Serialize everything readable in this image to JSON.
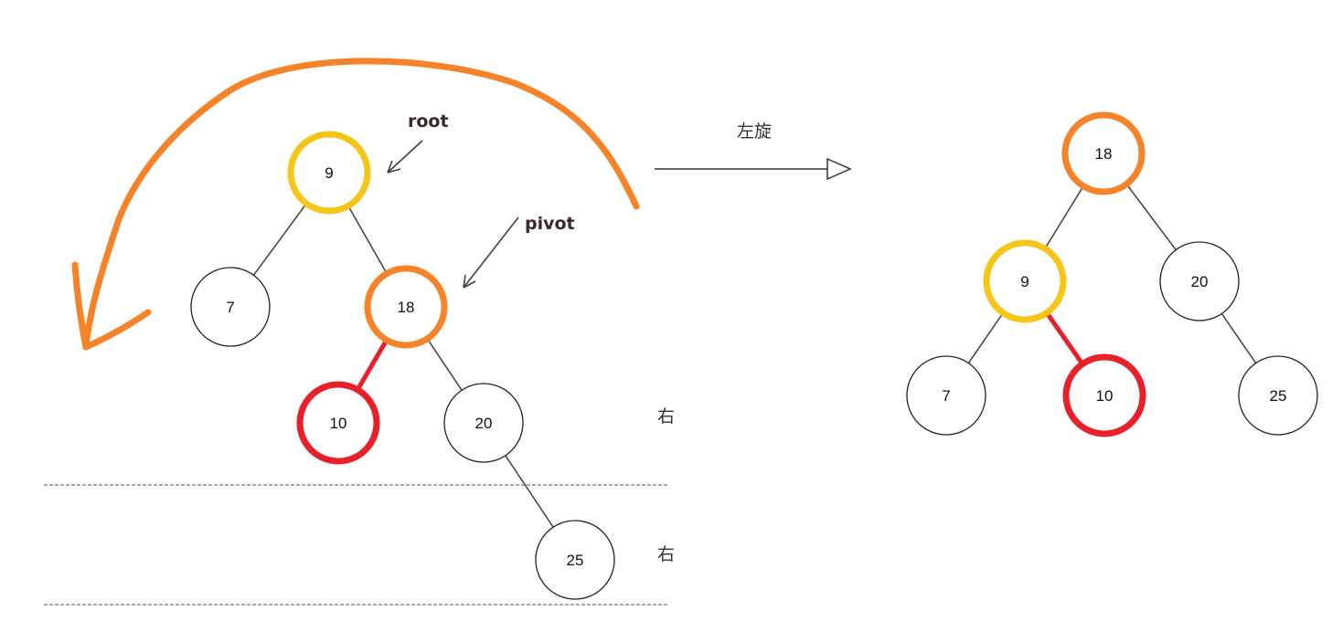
{
  "colors": {
    "root_ring": "#f5c518",
    "pivot_ring": "#f5832a",
    "moved_ring": "#e8202a",
    "plain_ring": "#222222",
    "edge": "#4a3b38",
    "curve_arrow": "#f5832a",
    "dashed_line": "#555555"
  },
  "annotations": {
    "root": "root",
    "pivot": "pivot",
    "rotate_left": "左旋",
    "right_1": "右",
    "right_2": "右"
  },
  "before_tree": {
    "nodes": [
      {
        "id": "b9",
        "value": "9",
        "role": "root"
      },
      {
        "id": "b7",
        "value": "7",
        "role": "plain"
      },
      {
        "id": "b18",
        "value": "18",
        "role": "pivot"
      },
      {
        "id": "b10",
        "value": "10",
        "role": "moved"
      },
      {
        "id": "b20",
        "value": "20",
        "role": "plain"
      },
      {
        "id": "b25",
        "value": "25",
        "role": "plain"
      }
    ],
    "edges": [
      {
        "from": "b9",
        "to": "b7"
      },
      {
        "from": "b9",
        "to": "b18"
      },
      {
        "from": "b18",
        "to": "b10",
        "highlight": true
      },
      {
        "from": "b18",
        "to": "b20"
      },
      {
        "from": "b20",
        "to": "b25"
      }
    ]
  },
  "after_tree": {
    "nodes": [
      {
        "id": "a18",
        "value": "18",
        "role": "pivot"
      },
      {
        "id": "a9",
        "value": "9",
        "role": "root"
      },
      {
        "id": "a20",
        "value": "20",
        "role": "plain"
      },
      {
        "id": "a7",
        "value": "7",
        "role": "plain"
      },
      {
        "id": "a10",
        "value": "10",
        "role": "moved"
      },
      {
        "id": "a25",
        "value": "25",
        "role": "plain"
      }
    ],
    "edges": [
      {
        "from": "a18",
        "to": "a9"
      },
      {
        "from": "a18",
        "to": "a20"
      },
      {
        "from": "a9",
        "to": "a7"
      },
      {
        "from": "a9",
        "to": "a10",
        "highlight": true
      },
      {
        "from": "a20",
        "to": "a25"
      }
    ]
  }
}
